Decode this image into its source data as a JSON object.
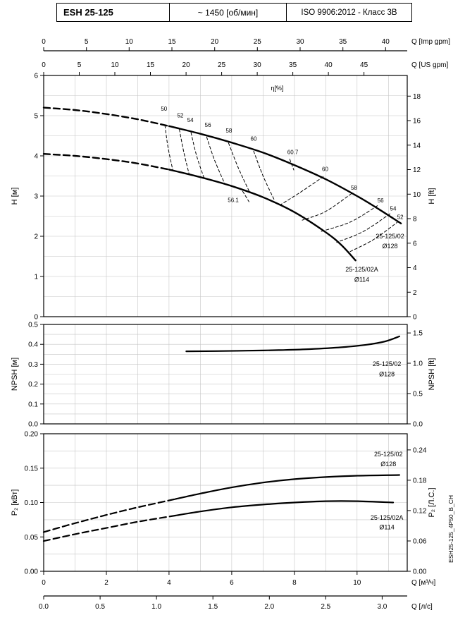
{
  "header": {
    "model": "ESH 25-125",
    "speed": "~ 1450 [об/мин]",
    "standard": "ISO 9906:2012 - Класс 3В"
  },
  "side_code": "ESH25-125_4P50_B_CH",
  "chart_data": {
    "type": "line",
    "title": "ESH 25-125 pump performance curves",
    "x": {
      "qmax": 11.6,
      "grid_step": 1,
      "axes": {
        "imp_gpm": {
          "label": "Q [Imp gpm]",
          "ticks": [
            0,
            5,
            10,
            15,
            20,
            25,
            30,
            35,
            40
          ],
          "factor": 0.27276
        },
        "us_gpm": {
          "label": "Q [US gpm]",
          "ticks": [
            0,
            5,
            10,
            15,
            20,
            25,
            30,
            35,
            40,
            45
          ],
          "factor": 0.22712
        },
        "m3h": {
          "label": "Q [м³/ч]",
          "ticks": [
            0,
            2,
            4,
            6,
            8,
            10
          ],
          "factor": 1
        },
        "ls": {
          "label": "Q [л/с]",
          "ticks": [
            "0.0",
            "0.5",
            "1.0",
            "1.5",
            "2.0",
            "2.5",
            "3.0"
          ],
          "factor": 3.6
        }
      }
    },
    "charts": [
      {
        "id": "head",
        "ylabel_left": "H [м]",
        "ylabel_right": "H [ft]",
        "ylim": [
          0,
          6
        ],
        "grid_y_step": 0.5,
        "yticks_left": [
          "0",
          "1",
          "2",
          "3",
          "4",
          "5",
          "6"
        ],
        "yticks_right": {
          "labels": [
            "0",
            "2",
            "4",
            "6",
            "8",
            "10",
            "12",
            "14",
            "16",
            "18"
          ],
          "factor": 0.3048
        },
        "series": [
          {
            "name": "h-25-125-02-d128-dashed",
            "dash": "long",
            "width": 2.4,
            "points": [
              [
                0,
                5.2
              ],
              [
                1,
                5.14
              ],
              [
                2,
                5.04
              ],
              [
                3,
                4.91
              ],
              [
                4,
                4.74
              ]
            ]
          },
          {
            "name": "h-25-125-02-d128-solid",
            "dash": "none",
            "width": 2.4,
            "points": [
              [
                4,
                4.74
              ],
              [
                5,
                4.55
              ],
              [
                6,
                4.33
              ],
              [
                7,
                4.08
              ],
              [
                8,
                3.77
              ],
              [
                9,
                3.42
              ],
              [
                10,
                3.0
              ],
              [
                10.7,
                2.67
              ],
              [
                11.4,
                2.32
              ]
            ]
          },
          {
            "name": "h-25-125-02a-d114-dashed",
            "dash": "long",
            "width": 2.4,
            "points": [
              [
                0,
                4.05
              ],
              [
                1,
                4.0
              ],
              [
                2,
                3.92
              ],
              [
                3,
                3.81
              ],
              [
                4,
                3.66
              ]
            ]
          },
          {
            "name": "h-25-125-02a-d114-solid",
            "dash": "none",
            "width": 2.4,
            "points": [
              [
                4,
                3.66
              ],
              [
                5,
                3.47
              ],
              [
                6,
                3.25
              ],
              [
                7,
                2.97
              ],
              [
                8,
                2.6
              ],
              [
                9,
                2.1
              ],
              [
                9.5,
                1.78
              ],
              [
                9.95,
                1.4
              ]
            ]
          },
          {
            "name": "eff-50",
            "dash": "short",
            "width": 1,
            "points": [
              [
                3.87,
                4.76
              ],
              [
                3.97,
                4.2
              ],
              [
                4.12,
                3.64
              ]
            ]
          },
          {
            "name": "eff-52",
            "dash": "short",
            "width": 1,
            "points": [
              [
                4.33,
                4.66
              ],
              [
                4.47,
                4.1
              ],
              [
                4.64,
                3.55
              ]
            ]
          },
          {
            "name": "eff-54",
            "dash": "short",
            "width": 1,
            "points": [
              [
                4.7,
                4.58
              ],
              [
                4.88,
                4.0
              ],
              [
                5.12,
                3.44
              ]
            ]
          },
          {
            "name": "eff-56",
            "dash": "short",
            "width": 1,
            "points": [
              [
                5.2,
                4.47
              ],
              [
                5.45,
                3.9
              ],
              [
                5.78,
                3.3
              ]
            ]
          },
          {
            "name": "eff-58",
            "dash": "short",
            "width": 1,
            "points": [
              [
                5.9,
                4.32
              ],
              [
                6.2,
                3.72
              ],
              [
                6.58,
                3.08
              ]
            ]
          },
          {
            "name": "eff-60-left",
            "dash": "short",
            "width": 1,
            "points": [
              [
                6.7,
                4.12
              ],
              [
                7.0,
                3.5
              ],
              [
                7.35,
                2.92
              ]
            ]
          },
          {
            "name": "eff-60-7-stub",
            "dash": "short",
            "width": 1,
            "points": [
              [
                7.85,
                3.92
              ],
              [
                7.98,
                3.65
              ]
            ]
          },
          {
            "name": "eff-60-right",
            "dash": "short",
            "width": 1,
            "points": [
              [
                8.92,
                3.48
              ],
              [
                8.2,
                3.1
              ],
              [
                7.55,
                2.78
              ]
            ]
          },
          {
            "name": "eff-58-right",
            "dash": "short",
            "width": 1,
            "points": [
              [
                9.82,
                3.06
              ],
              [
                9.0,
                2.62
              ],
              [
                8.25,
                2.4
              ]
            ]
          },
          {
            "name": "eff-56-right",
            "dash": "short",
            "width": 1,
            "points": [
              [
                10.65,
                2.76
              ],
              [
                9.8,
                2.36
              ],
              [
                8.85,
                2.12
              ]
            ]
          },
          {
            "name": "eff-54-right",
            "dash": "short",
            "width": 1,
            "points": [
              [
                11.05,
                2.56
              ],
              [
                10.2,
                2.12
              ],
              [
                9.35,
                1.85
              ]
            ]
          },
          {
            "name": "eff-52-right",
            "dash": "short",
            "width": 1,
            "points": [
              [
                11.32,
                2.37
              ],
              [
                10.55,
                1.93
              ],
              [
                9.78,
                1.62
              ]
            ]
          },
          {
            "name": "eff-56-1-stub",
            "dash": "short",
            "width": 1,
            "points": [
              [
                6.35,
                3.12
              ],
              [
                6.55,
                2.86
              ]
            ]
          }
        ],
        "annotations": [
          {
            "text": "η[%]",
            "q": 7.45,
            "v": 5.63,
            "size": 9
          },
          {
            "text": "50",
            "q": 3.84,
            "v": 5.12,
            "size": 8
          },
          {
            "text": "52",
            "q": 4.36,
            "v": 4.96,
            "size": 8
          },
          {
            "text": "54",
            "q": 4.68,
            "v": 4.84,
            "size": 8
          },
          {
            "text": "56",
            "q": 5.24,
            "v": 4.72,
            "size": 8
          },
          {
            "text": "58",
            "q": 5.91,
            "v": 4.58,
            "size": 8
          },
          {
            "text": "60",
            "q": 6.7,
            "v": 4.38,
            "size": 8
          },
          {
            "text": "60.7",
            "q": 7.95,
            "v": 4.04,
            "size": 8
          },
          {
            "text": "60",
            "q": 8.98,
            "v": 3.62,
            "size": 8
          },
          {
            "text": "58",
            "q": 9.9,
            "v": 3.16,
            "size": 8
          },
          {
            "text": "56",
            "q": 10.75,
            "v": 2.84,
            "size": 8
          },
          {
            "text": "54",
            "q": 11.15,
            "v": 2.64,
            "size": 8
          },
          {
            "text": "52",
            "q": 11.38,
            "v": 2.43,
            "size": 8
          },
          {
            "text": "56.1",
            "q": 6.05,
            "v": 2.85,
            "size": 8
          },
          {
            "text": "25-125/02",
            "q": 11.05,
            "v": 1.95,
            "size": 9
          },
          {
            "text": "Ø128",
            "q": 11.05,
            "v": 1.7,
            "size": 9
          },
          {
            "text": "25-125/02A",
            "q": 10.15,
            "v": 1.12,
            "size": 9
          },
          {
            "text": "Ø114",
            "q": 10.15,
            "v": 0.87,
            "size": 9
          }
        ]
      },
      {
        "id": "npsh",
        "ylabel_left": "NPSH [м]",
        "ylabel_right": "NPSH [ft]",
        "ylim": [
          0,
          0.5
        ],
        "grid_y_step": 0.05,
        "yticks_left": [
          "0.0",
          "0.1",
          "0.2",
          "0.3",
          "0.4",
          "0.5"
        ],
        "yticks_right": {
          "labels": [
            "0.0",
            "0.5",
            "1.0",
            "1.5"
          ],
          "factor": 0.3048
        },
        "series": [
          {
            "name": "npsh-25-125-02-d128",
            "dash": "none",
            "width": 2.2,
            "points": [
              [
                4.55,
                0.365
              ],
              [
                5.5,
                0.366
              ],
              [
                6.5,
                0.368
              ],
              [
                7.5,
                0.371
              ],
              [
                8.5,
                0.376
              ],
              [
                9.5,
                0.385
              ],
              [
                10.3,
                0.398
              ],
              [
                10.9,
                0.415
              ],
              [
                11.35,
                0.44
              ]
            ]
          }
        ],
        "annotations": [
          {
            "text": "25-125/02",
            "q": 10.95,
            "v": 0.29,
            "size": 9
          },
          {
            "text": "Ø128",
            "q": 10.95,
            "v": 0.24,
            "size": 9
          }
        ]
      },
      {
        "id": "power",
        "ylabel_left": "P₂ [кВт]",
        "ylabel_right": "P₂ [Л.С.]",
        "ylim": [
          0,
          0.2
        ],
        "grid_y_step": 0.025,
        "yticks_left": [
          "0.00",
          "0.05",
          "0.10",
          "0.15",
          "0.20"
        ],
        "yticks_right": {
          "labels": [
            "0.00",
            "0.06",
            "0.12",
            "0.18",
            "0.24"
          ],
          "factor": 0.7355
        },
        "series": [
          {
            "name": "p-25-125-02-d128-dashed",
            "dash": "long",
            "width": 2.2,
            "points": [
              [
                0,
                0.057
              ],
              [
                1,
                0.07
              ],
              [
                2,
                0.082
              ],
              [
                3,
                0.093
              ],
              [
                4.2,
                0.105
              ]
            ]
          },
          {
            "name": "p-25-125-02-d128-solid",
            "dash": "none",
            "width": 2.2,
            "points": [
              [
                4.2,
                0.105
              ],
              [
                5,
                0.113
              ],
              [
                6,
                0.122
              ],
              [
                7,
                0.129
              ],
              [
                8,
                0.134
              ],
              [
                9,
                0.137
              ],
              [
                10,
                0.139
              ],
              [
                11.35,
                0.14
              ]
            ]
          },
          {
            "name": "p-25-125-02a-d114-dashed",
            "dash": "long",
            "width": 2.2,
            "points": [
              [
                0,
                0.044
              ],
              [
                1,
                0.054
              ],
              [
                2,
                0.063
              ],
              [
                3,
                0.072
              ],
              [
                4.2,
                0.081
              ]
            ]
          },
          {
            "name": "p-25-125-02a-d114-solid",
            "dash": "none",
            "width": 2.2,
            "points": [
              [
                4.2,
                0.081
              ],
              [
                5,
                0.087
              ],
              [
                6,
                0.093
              ],
              [
                7,
                0.097
              ],
              [
                8,
                0.1
              ],
              [
                9,
                0.102
              ],
              [
                10,
                0.102
              ],
              [
                11.15,
                0.1
              ]
            ]
          }
        ],
        "annotations": [
          {
            "text": "25-125/02",
            "q": 11.0,
            "v": 0.167,
            "size": 9
          },
          {
            "text": "Ø128",
            "q": 11.0,
            "v": 0.153,
            "size": 9
          },
          {
            "text": "25-125/02A",
            "q": 10.95,
            "v": 0.075,
            "size": 9
          },
          {
            "text": "Ø114",
            "q": 10.95,
            "v": 0.061,
            "size": 9
          }
        ]
      }
    ]
  }
}
